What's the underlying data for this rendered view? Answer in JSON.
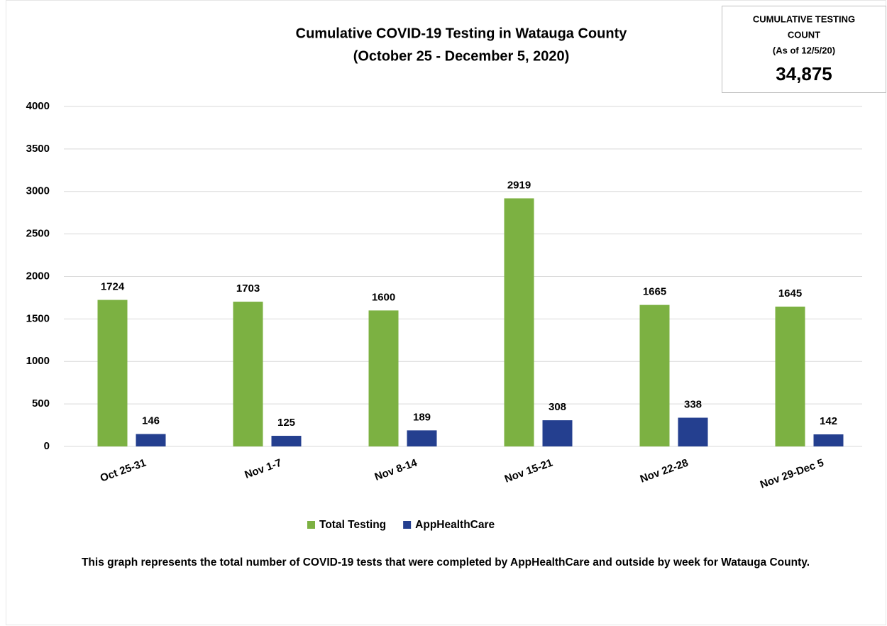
{
  "chart_data": {
    "type": "bar",
    "title": "Cumulative COVID-19 Testing in Watauga County",
    "subtitle": "(October 25 - December 5, 2020)",
    "categories": [
      "Oct 25-31",
      "Nov 1-7",
      "Nov 8-14",
      "Nov 15-21",
      "Nov 22-28",
      "Nov 29-Dec 5"
    ],
    "series": [
      {
        "name": "Total Testing",
        "color": "#7cb142",
        "values": [
          1724,
          1703,
          1600,
          2919,
          1665,
          1645
        ]
      },
      {
        "name": "AppHealthCare",
        "color": "#243f8f",
        "values": [
          146,
          125,
          189,
          308,
          338,
          142
        ]
      }
    ],
    "ylim": [
      0,
      4000
    ],
    "yticks": [
      0,
      500,
      1000,
      1500,
      2000,
      2500,
      3000,
      3500,
      4000
    ],
    "grid": true,
    "legend": "bottom",
    "summary_box": {
      "label_lines": [
        "CUMULATIVE  TESTING",
        "COUNT"
      ],
      "as_of": "(As of 12/5/20)",
      "value": "34,875"
    },
    "footnote": "This graph represents the total number of COVID-19 tests that were completed by AppHealthCare and outside by week for Watauga County."
  }
}
